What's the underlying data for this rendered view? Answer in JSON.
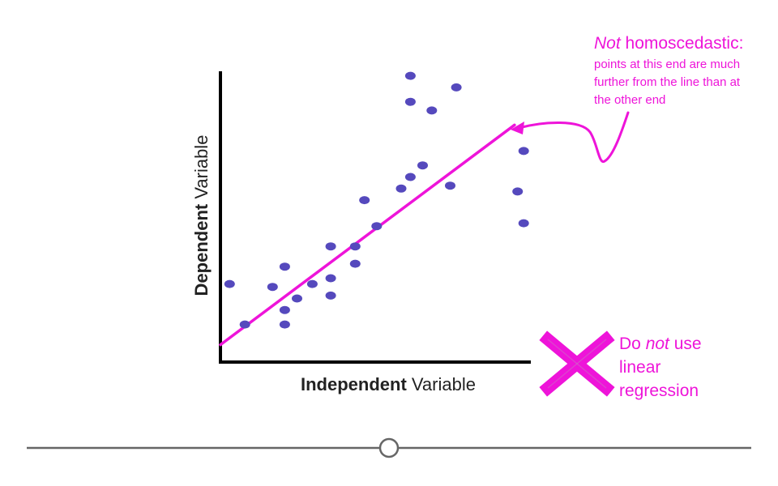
{
  "chart_data": {
    "type": "scatter",
    "xlabel": {
      "bold": "Independent",
      "rest": " Variable"
    },
    "ylabel": {
      "bold": "Dependent",
      "rest": " Variable"
    },
    "xlim": [
      0,
      100
    ],
    "ylim": [
      0,
      100
    ],
    "grid": false,
    "points": [
      {
        "x": 8,
        "y": 13
      },
      {
        "x": 21,
        "y": 13
      },
      {
        "x": 3,
        "y": 27
      },
      {
        "x": 21,
        "y": 18
      },
      {
        "x": 17,
        "y": 26
      },
      {
        "x": 25,
        "y": 22
      },
      {
        "x": 30,
        "y": 27
      },
      {
        "x": 21,
        "y": 33
      },
      {
        "x": 36,
        "y": 23
      },
      {
        "x": 36,
        "y": 29
      },
      {
        "x": 36,
        "y": 40
      },
      {
        "x": 44,
        "y": 34
      },
      {
        "x": 44,
        "y": 40
      },
      {
        "x": 51,
        "y": 47
      },
      {
        "x": 47,
        "y": 56
      },
      {
        "x": 59,
        "y": 60
      },
      {
        "x": 62,
        "y": 64
      },
      {
        "x": 66,
        "y": 68
      },
      {
        "x": 75,
        "y": 61
      },
      {
        "x": 62,
        "y": 90
      },
      {
        "x": 69,
        "y": 87
      },
      {
        "x": 77,
        "y": 95
      },
      {
        "x": 62,
        "y": 99
      },
      {
        "x": 99,
        "y": 73
      },
      {
        "x": 97,
        "y": 59
      },
      {
        "x": 99,
        "y": 48
      }
    ],
    "fit_line": {
      "x": [
        0,
        96
      ],
      "y": [
        6,
        82
      ]
    },
    "colors": {
      "points": "#5549bd",
      "line": "#ee14d9",
      "annotation": "#ee14d9",
      "axes": "#000000"
    }
  },
  "annotation": {
    "heading_italic": "Not",
    "heading_rest": " homoscedastic:",
    "body_lines": [
      "points at this end are much",
      "further from the line than at",
      "the other end"
    ]
  },
  "verdict": {
    "icon": "cross-icon",
    "line1_pre": "Do ",
    "line1_italic": "not",
    "line1_post": " use",
    "line2": "linear",
    "line3": "regression"
  },
  "slider": {
    "icon": "circle-handle-icon",
    "value": 0.5
  }
}
